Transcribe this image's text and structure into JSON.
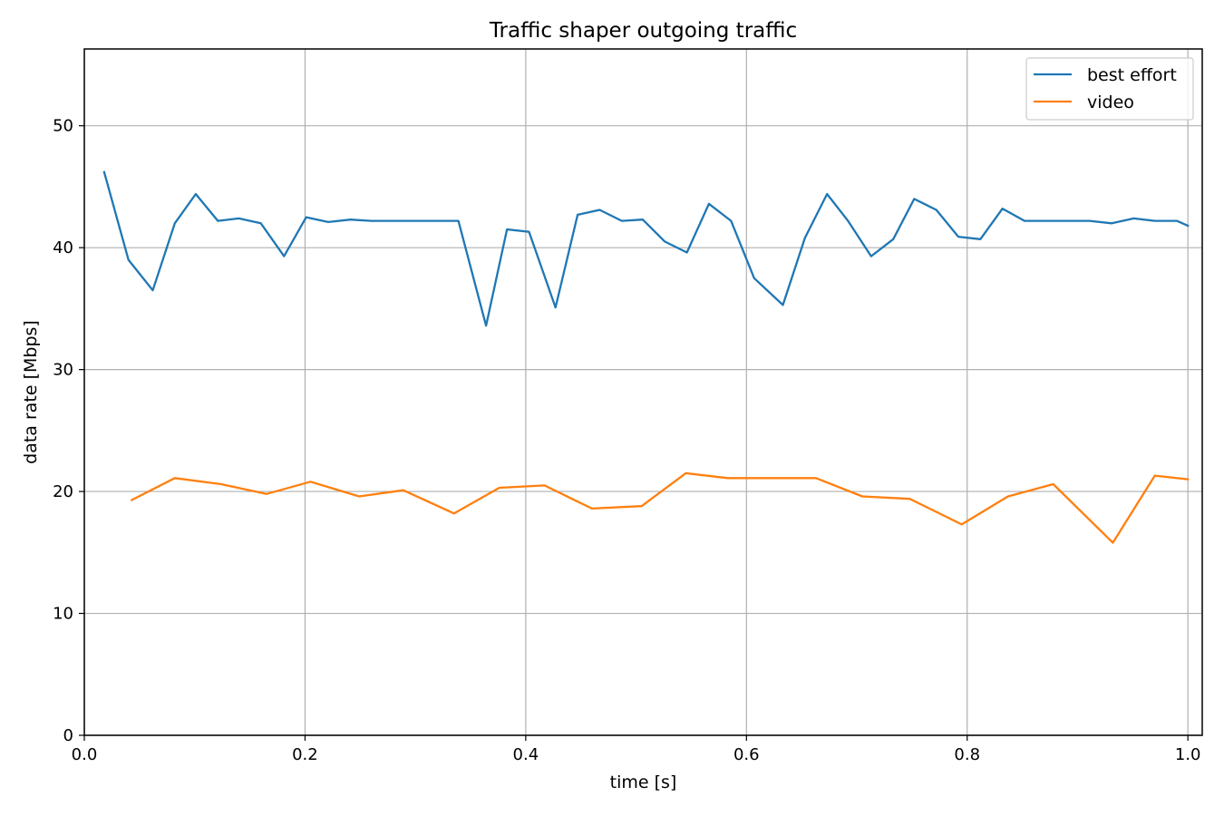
{
  "chart_data": {
    "type": "line",
    "title": "Traffic shaper outgoing traffic",
    "xlabel": "time [s]",
    "ylabel": "data rate [Mbps]",
    "xlim": [
      0.0,
      1.013
    ],
    "ylim": [
      0,
      56.3
    ],
    "xticks": [
      0.0,
      0.2,
      0.4,
      0.6,
      0.8,
      1.0
    ],
    "xtick_labels": [
      "0.0",
      "0.2",
      "0.4",
      "0.6",
      "0.8",
      "1.0"
    ],
    "yticks": [
      0,
      10,
      20,
      30,
      40,
      50
    ],
    "ytick_labels": [
      "0",
      "10",
      "20",
      "30",
      "40",
      "50"
    ],
    "grid": true,
    "legend_position": "top-right",
    "series": [
      {
        "name": "best effort",
        "color": "#1f77b4",
        "x": [
          0.018,
          0.04,
          0.062,
          0.082,
          0.101,
          0.121,
          0.14,
          0.16,
          0.181,
          0.201,
          0.221,
          0.241,
          0.26,
          0.28,
          0.3,
          0.32,
          0.339,
          0.364,
          0.383,
          0.403,
          0.427,
          0.447,
          0.467,
          0.487,
          0.506,
          0.526,
          0.546,
          0.566,
          0.586,
          0.607,
          0.633,
          0.653,
          0.673,
          0.692,
          0.713,
          0.733,
          0.752,
          0.772,
          0.792,
          0.812,
          0.832,
          0.852,
          0.871,
          0.891,
          0.911,
          0.931,
          0.951,
          0.97,
          0.99,
          1.0
        ],
        "y": [
          46.2,
          39.0,
          36.5,
          42.0,
          44.4,
          42.2,
          42.4,
          42.0,
          39.3,
          42.5,
          42.1,
          42.3,
          42.2,
          42.2,
          42.2,
          42.2,
          42.2,
          33.6,
          41.5,
          41.3,
          35.1,
          42.7,
          43.1,
          42.2,
          42.3,
          40.5,
          39.6,
          43.6,
          42.2,
          37.5,
          35.3,
          40.8,
          44.4,
          42.2,
          39.3,
          40.7,
          44.0,
          43.1,
          40.9,
          40.7,
          43.2,
          42.2,
          42.2,
          42.2,
          42.2,
          42.0,
          42.4,
          42.2,
          42.2,
          41.8
        ]
      },
      {
        "name": "video",
        "color": "#ff7f0e",
        "x": [
          0.043,
          0.082,
          0.124,
          0.165,
          0.205,
          0.249,
          0.289,
          0.335,
          0.376,
          0.417,
          0.46,
          0.505,
          0.545,
          0.583,
          0.626,
          0.663,
          0.705,
          0.748,
          0.795,
          0.837,
          0.878,
          0.932,
          0.97,
          1.0
        ],
        "y": [
          19.3,
          21.1,
          20.6,
          19.8,
          20.8,
          19.6,
          20.1,
          18.2,
          20.3,
          20.5,
          18.6,
          18.8,
          21.5,
          21.1,
          21.1,
          21.1,
          19.6,
          19.4,
          17.3,
          19.6,
          20.6,
          15.8,
          21.3,
          21.0
        ]
      }
    ]
  }
}
